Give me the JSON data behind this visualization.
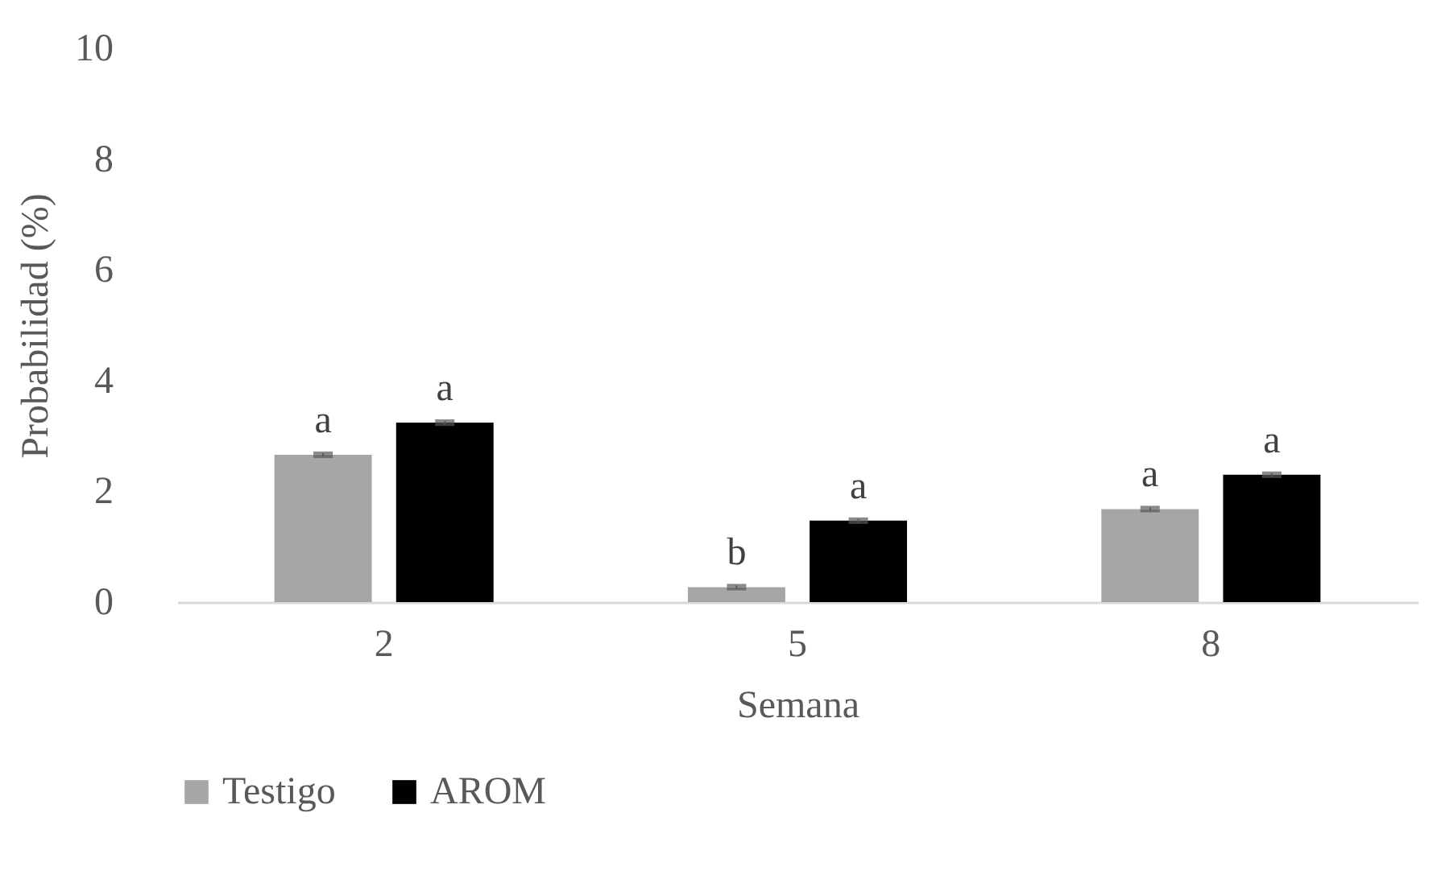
{
  "chart_data": {
    "type": "bar",
    "xlabel": "Semana",
    "ylabel": "Probabilidad (%)",
    "categories": [
      "2",
      "5",
      "8"
    ],
    "series": [
      {
        "name": "Testigo",
        "color": "#a6a6a6",
        "values": [
          2.66,
          0.27,
          1.68
        ],
        "errors": [
          0.03,
          0.03,
          0.03
        ],
        "value_labels": [
          "a",
          "b",
          "a"
        ]
      },
      {
        "name": "AROM",
        "color": "#000000",
        "values": [
          3.24,
          1.47,
          2.3
        ],
        "errors": [
          0.03,
          0.03,
          0.03
        ],
        "value_labels": [
          "a",
          "a",
          "a"
        ]
      }
    ],
    "ylim": [
      0,
      10
    ],
    "yticks": [
      0,
      2,
      4,
      6,
      8,
      10
    ],
    "grid": false,
    "legend": "bottom"
  }
}
